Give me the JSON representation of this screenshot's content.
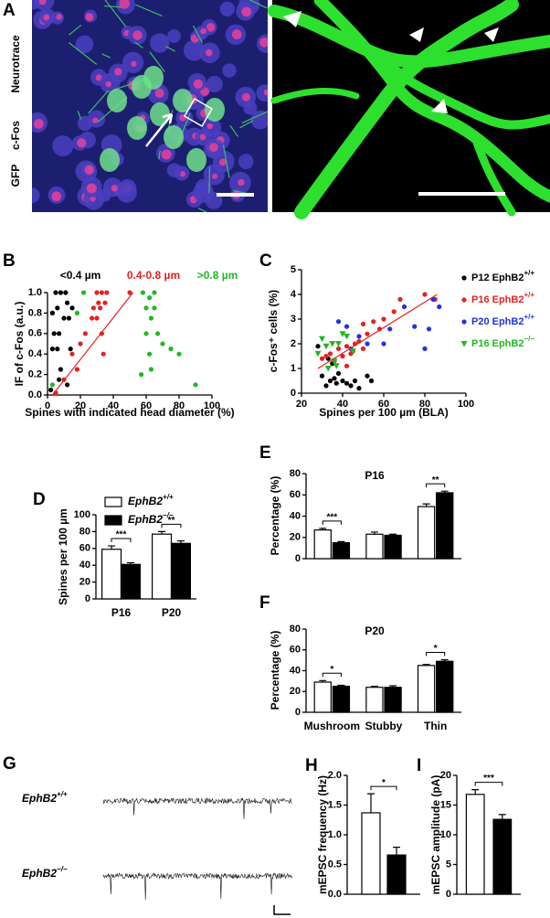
{
  "panel_a": {
    "label": "A",
    "channels": [
      "Neurotrace",
      "c-Fos",
      "GFP"
    ]
  },
  "panel_g": {
    "label": "G",
    "traces": [
      "EphB2+/+",
      "EphB2−/−"
    ]
  },
  "chart_data": [
    {
      "label": "B",
      "type": "scatter",
      "xlabel": "Spines with indicated head diameter (%)",
      "ylabel": "IF of c-Fos (a.u.)",
      "xlim": [
        0,
        100
      ],
      "xticks": [
        0,
        20,
        40,
        60,
        80,
        100
      ],
      "ylim": [
        0,
        1
      ],
      "yticks": [
        {
          "value": 0,
          "label": "0.0"
        },
        0.2,
        0.4,
        0.6,
        0.8,
        {
          "value": 1,
          "label": "1.0"
        }
      ],
      "legend": "top",
      "series": [
        {
          "name": "<0.4 µm",
          "color": "#000000",
          "marker": "circle",
          "x": [
            2,
            3,
            3,
            4,
            5,
            6,
            6,
            7,
            8,
            8,
            10,
            11,
            12,
            13,
            14,
            12,
            7,
            15
          ],
          "values": [
            0.05,
            0.45,
            0.8,
            0.6,
            1.0,
            0.85,
            0.45,
            0.6,
            0.25,
            1.0,
            0.75,
            1.0,
            0.9,
            0.75,
            0.45,
            0.1,
            0.15,
            0.85
          ]
        },
        {
          "name": "0.4-0.8 µm",
          "color": "#e32222",
          "marker": "circle",
          "x": [
            5,
            10,
            15,
            18,
            20,
            23,
            27,
            28,
            30,
            31,
            32,
            33,
            35,
            30,
            33,
            36,
            50,
            34
          ],
          "values": [
            0.02,
            0.15,
            0.4,
            0.25,
            0.5,
            0.6,
            0.75,
            0.85,
            1.0,
            0.9,
            0.85,
            1.0,
            0.9,
            0.75,
            0.6,
            1.0,
            1.0,
            0.4
          ]
        },
        {
          "name": ">0.8 µm",
          "color": "#22b822",
          "marker": "circle",
          "x": [
            3,
            18,
            22,
            58,
            60,
            62,
            63,
            65,
            60,
            67,
            70,
            63,
            75,
            80,
            90,
            62,
            57,
            65
          ],
          "values": [
            0.1,
            0.8,
            1.0,
            1.0,
            0.85,
            0.95,
            0.75,
            0.85,
            0.6,
            0.6,
            0.5,
            0.25,
            0.45,
            0.4,
            0.1,
            0.4,
            0.2,
            1.0
          ]
        }
      ],
      "fit": {
        "color": "#e32222",
        "x": [
          3,
          52
        ],
        "values": [
          0,
          1
        ]
      }
    },
    {
      "label": "C",
      "type": "scatter",
      "xlabel": "Spines per 100 µm (BLA)",
      "ylabel": "c-Fos⁺ cells (%)",
      "xlim": [
        20,
        100
      ],
      "xticks": [
        20,
        40,
        60,
        80,
        100
      ],
      "ylim": [
        0,
        5
      ],
      "yticks": [
        0,
        1,
        2,
        3,
        4,
        5
      ],
      "legend": "right",
      "series": [
        {
          "name": "P12 EphB2+/+",
          "color": "#000000",
          "marker": "circle",
          "x": [
            28,
            30,
            32,
            34,
            36,
            37,
            38,
            40,
            42,
            44,
            46,
            48,
            52,
            54,
            33,
            35
          ],
          "values": [
            1.9,
            0.7,
            0.3,
            0.5,
            0.6,
            0.4,
            0.8,
            0.5,
            0.4,
            0.3,
            0.5,
            0.2,
            0.7,
            0.5,
            1.4,
            1.2
          ]
        },
        {
          "name": "P16 EphB2+/+",
          "color": "#e32222",
          "marker": "circle",
          "x": [
            30,
            32,
            34,
            36,
            38,
            40,
            42,
            44,
            46,
            48,
            50,
            52,
            55,
            58,
            60,
            65,
            68,
            80,
            85,
            50,
            45,
            42
          ],
          "values": [
            1.4,
            1.5,
            1.6,
            1.3,
            1.8,
            1.5,
            1.9,
            1.6,
            2.0,
            2.1,
            2.8,
            2.4,
            2.9,
            2.6,
            3.0,
            3.3,
            3.8,
            4.0,
            3.8,
            1.8,
            1.7,
            1.1
          ]
        },
        {
          "name": "P20 EphB2+/+",
          "color": "#2233dd",
          "marker": "circle",
          "x": [
            38,
            42,
            44,
            48,
            60,
            63,
            70,
            75,
            80,
            82,
            84,
            87,
            52
          ],
          "values": [
            2.9,
            2.7,
            1.8,
            2.3,
            2.0,
            2.6,
            3.5,
            2.7,
            1.8,
            2.6,
            3.8,
            3.5,
            2.0
          ]
        },
        {
          "name": "P16 EphB2−/−",
          "color": "#22b822",
          "marker": "triangle",
          "x": [
            28,
            30,
            32,
            35,
            37,
            38,
            40,
            42,
            33,
            45,
            36
          ],
          "values": [
            1.6,
            2.2,
            1.9,
            2.0,
            1.1,
            2.0,
            2.4,
            2.3,
            1.0,
            1.7,
            1.3
          ]
        }
      ],
      "fit": {
        "color": "#e32222",
        "x": [
          28,
          86
        ],
        "values": [
          1.0,
          4.0
        ]
      }
    },
    {
      "label": "D",
      "type": "bar",
      "ylabel": "Spines per 100 µm",
      "categories": [
        "P16",
        "P20"
      ],
      "ylim": [
        0,
        100
      ],
      "yticks": [
        0,
        20,
        40,
        60,
        80,
        100
      ],
      "legend": "top-left",
      "series": [
        {
          "name": "EphB2+/+",
          "color": "#ffffff",
          "values": [
            59,
            77
          ],
          "errors": [
            4,
            3
          ]
        },
        {
          "name": "EphB2−/−",
          "color": "#000000",
          "values": [
            41,
            66
          ],
          "errors": [
            2,
            3
          ]
        }
      ],
      "significance": [
        "***",
        "**"
      ]
    },
    {
      "label": "E",
      "type": "bar",
      "title": "P16",
      "ylabel": "Percentage (%)",
      "categories": [
        null,
        null,
        null
      ],
      "ylim": [
        0,
        80
      ],
      "yticks": [
        0,
        20,
        40,
        60,
        80
      ],
      "series": [
        {
          "color": "#ffffff",
          "values": [
            27,
            23,
            49
          ],
          "errors": [
            1.5,
            2,
            2.5
          ]
        },
        {
          "color": "#000000",
          "values": [
            15,
            22,
            62
          ],
          "errors": [
            1,
            1,
            1.5
          ]
        }
      ],
      "significance": [
        "***",
        null,
        "**"
      ]
    },
    {
      "label": "F",
      "type": "bar",
      "title": "P20",
      "ylabel": "Percentage (%)",
      "categories": [
        "Mushroom",
        "Stubby",
        "Thin"
      ],
      "ylim": [
        0,
        80
      ],
      "yticks": [
        0,
        20,
        40,
        60,
        80
      ],
      "series": [
        {
          "color": "#ffffff",
          "values": [
            29,
            24,
            45
          ],
          "errors": [
            1.5,
            1,
            1
          ]
        },
        {
          "color": "#000000",
          "values": [
            25,
            24,
            49
          ],
          "errors": [
            1,
            1.5,
            1.5
          ]
        }
      ],
      "significance": [
        "*",
        null,
        "*"
      ]
    },
    {
      "label": "H",
      "type": "bar",
      "ylabel": "mEPSC frequency (Hz)",
      "categories": [
        null
      ],
      "ylim": [
        0,
        2
      ],
      "yticks": [
        {
          "value": 0,
          "label": "0.0"
        },
        0.5,
        {
          "value": 1,
          "label": "1.0"
        },
        1.5,
        {
          "value": 2,
          "label": "2.0"
        }
      ],
      "series": [
        {
          "color": "#ffffff",
          "values": [
            1.37
          ],
          "errors": [
            0.32
          ]
        },
        {
          "color": "#000000",
          "values": [
            0.66
          ],
          "errors": [
            0.13
          ]
        }
      ],
      "significance": [
        "*"
      ]
    },
    {
      "label": "I",
      "type": "bar",
      "ylabel": "mEPSC amplitude (pA)",
      "categories": [
        null
      ],
      "ylim": [
        0,
        20
      ],
      "yticks": [
        0,
        5,
        10,
        15,
        20
      ],
      "series": [
        {
          "color": "#ffffff",
          "values": [
            16.8
          ],
          "errors": [
            0.8
          ]
        },
        {
          "color": "#000000",
          "values": [
            12.6
          ],
          "errors": [
            0.8
          ]
        }
      ],
      "significance": [
        "***"
      ]
    }
  ]
}
